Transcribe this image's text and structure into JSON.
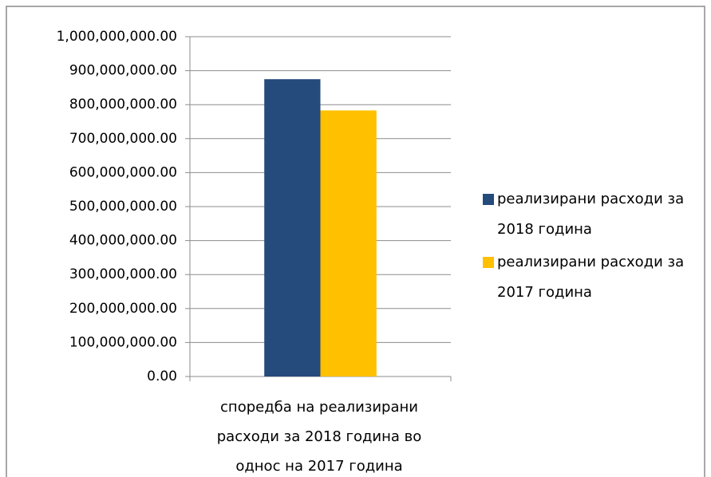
{
  "chart_data": {
    "type": "bar",
    "categories": [
      "споредба на реализирани расходи за 2018 година во однос на 2017 година"
    ],
    "series": [
      {
        "name": "реализирани расходи за 2018 година",
        "color": "#254a7c",
        "values": [
          875000000
        ]
      },
      {
        "name": "реализирани расходи за 2017 година",
        "color": "#ffc000",
        "values": [
          783000000
        ]
      }
    ],
    "ylim": [
      0,
      1000000000
    ],
    "yticks": [
      {
        "value": 0,
        "label": "0.00"
      },
      {
        "value": 100000000,
        "label": "100,000,000.00"
      },
      {
        "value": 200000000,
        "label": "200,000,000.00"
      },
      {
        "value": 300000000,
        "label": "300,000,000.00"
      },
      {
        "value": 400000000,
        "label": "400,000,000.00"
      },
      {
        "value": 500000000,
        "label": "500,000,000.00"
      },
      {
        "value": 600000000,
        "label": "600,000,000.00"
      },
      {
        "value": 700000000,
        "label": "700,000,000.00"
      },
      {
        "value": 800000000,
        "label": "800,000,000.00"
      },
      {
        "value": 900000000,
        "label": "900,000,000.00"
      },
      {
        "value": 1000000000,
        "label": "1,000,000,000.00"
      }
    ],
    "grid": true,
    "legend": "right"
  }
}
